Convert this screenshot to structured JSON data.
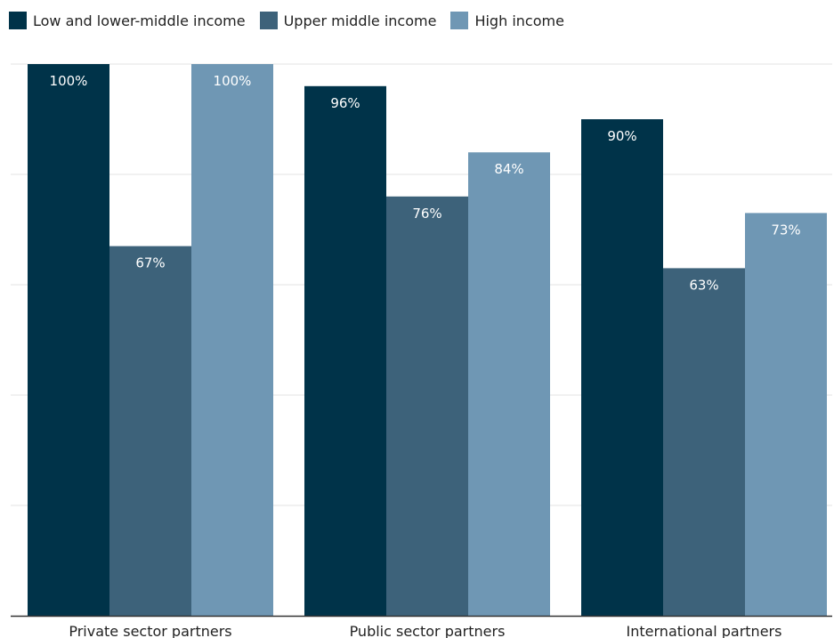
{
  "legend": [
    {
      "label": "Low and lower-middle income",
      "color": "#003349"
    },
    {
      "label": "Upper middle income",
      "color": "#3D627A"
    },
    {
      "label": "High income",
      "color": "#6F97B4"
    }
  ],
  "chart_data": {
    "type": "bar",
    "title": "",
    "xlabel": "",
    "ylabel": "",
    "categories": [
      "Private sector partners",
      "Public sector partners",
      "International partners"
    ],
    "series": [
      {
        "name": "Low and lower-middle income",
        "values": [
          100,
          96,
          90
        ],
        "labels": [
          "100%",
          "96%",
          "90%"
        ],
        "color": "#003349"
      },
      {
        "name": "Upper middle income",
        "values": [
          67,
          76,
          63
        ],
        "labels": [
          "67%",
          "76%",
          "63%"
        ],
        "color": "#3D627A"
      },
      {
        "name": "High income",
        "values": [
          100,
          84,
          73
        ],
        "labels": [
          "100%",
          "84%",
          "73%"
        ],
        "color": "#6F97B4"
      }
    ],
    "ylim": [
      0,
      100
    ],
    "gridlines": [
      0,
      20,
      40,
      60,
      80,
      100
    ],
    "grid": true,
    "legend_position": "top-left",
    "y_axis_labels_shown": false
  }
}
